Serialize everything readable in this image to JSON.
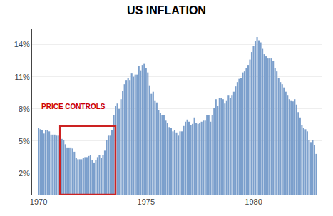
{
  "chart_data": {
    "type": "bar",
    "title": "US INFLATION",
    "color": "#7B9FCC",
    "x": [
      1970.0,
      1970.083,
      1970.167,
      1970.25,
      1970.333,
      1970.417,
      1970.5,
      1970.583,
      1970.667,
      1970.75,
      1970.833,
      1970.917,
      1971.0,
      1971.083,
      1971.167,
      1971.25,
      1971.333,
      1971.417,
      1971.5,
      1971.583,
      1971.667,
      1971.75,
      1971.833,
      1971.917,
      1972.0,
      1972.083,
      1972.167,
      1972.25,
      1972.333,
      1972.417,
      1972.5,
      1972.583,
      1972.667,
      1972.75,
      1972.833,
      1972.917,
      1973.0,
      1973.083,
      1973.167,
      1973.25,
      1973.333,
      1973.417,
      1973.5,
      1973.583,
      1973.667,
      1973.75,
      1973.833,
      1973.917,
      1974.0,
      1974.083,
      1974.167,
      1974.25,
      1974.333,
      1974.417,
      1974.5,
      1974.583,
      1974.667,
      1974.75,
      1974.833,
      1974.917,
      1975.0,
      1975.083,
      1975.167,
      1975.25,
      1975.333,
      1975.417,
      1975.5,
      1975.583,
      1975.667,
      1975.75,
      1975.833,
      1975.917,
      1976.0,
      1976.083,
      1976.167,
      1976.25,
      1976.333,
      1976.417,
      1976.5,
      1976.583,
      1976.667,
      1976.75,
      1976.833,
      1976.917,
      1977.0,
      1977.083,
      1977.167,
      1977.25,
      1977.333,
      1977.417,
      1977.5,
      1977.583,
      1977.667,
      1977.75,
      1977.833,
      1977.917,
      1978.0,
      1978.083,
      1978.167,
      1978.25,
      1978.333,
      1978.417,
      1978.5,
      1978.583,
      1978.667,
      1978.75,
      1978.833,
      1978.917,
      1979.0,
      1979.083,
      1979.167,
      1979.25,
      1979.333,
      1979.417,
      1979.5,
      1979.583,
      1979.667,
      1979.75,
      1979.833,
      1979.917,
      1980.0,
      1980.083,
      1980.167,
      1980.25,
      1980.333,
      1980.417,
      1980.5,
      1980.583,
      1980.667,
      1980.75,
      1980.833,
      1980.917,
      1981.0,
      1981.083,
      1981.167,
      1981.25,
      1981.333,
      1981.417,
      1981.5,
      1981.583,
      1981.667,
      1981.75,
      1981.833,
      1981.917,
      1982.0,
      1982.083,
      1982.167,
      1982.25,
      1982.333,
      1982.417,
      1982.5,
      1982.583,
      1982.667,
      1982.75,
      1982.833,
      1982.917
    ],
    "values": [
      6.2,
      6.1,
      6.0,
      5.7,
      6.0,
      6.0,
      5.9,
      5.6,
      5.6,
      5.6,
      5.5,
      5.5,
      5.3,
      5.2,
      5.1,
      4.7,
      4.4,
      4.4,
      4.4,
      4.3,
      4.0,
      3.4,
      3.3,
      3.3,
      3.3,
      3.4,
      3.5,
      3.5,
      3.6,
      3.7,
      3.2,
      3.0,
      3.2,
      3.5,
      3.7,
      3.4,
      3.7,
      4.1,
      5.1,
      5.5,
      5.5,
      6.0,
      7.4,
      8.3,
      8.5,
      8.0,
      8.9,
      9.7,
      10.3,
      10.7,
      10.9,
      10.7,
      11.3,
      11.0,
      11.2,
      11.2,
      12.0,
      11.6,
      12.1,
      12.2,
      11.8,
      11.4,
      10.2,
      9.4,
      9.6,
      8.8,
      8.6,
      7.9,
      7.6,
      7.4,
      7.4,
      6.9,
      6.7,
      6.3,
      6.2,
      5.9,
      6.0,
      5.8,
      5.5,
      5.9,
      5.9,
      6.4,
      6.8,
      7.0,
      6.8,
      6.5,
      6.6,
      7.2,
      6.7,
      6.6,
      6.7,
      6.8,
      6.9,
      6.9,
      7.4,
      7.4,
      6.8,
      7.4,
      8.1,
      8.9,
      8.3,
      9.0,
      9.0,
      8.9,
      8.5,
      8.8,
      9.3,
      9.0,
      9.3,
      9.6,
      10.1,
      10.5,
      10.8,
      10.9,
      11.4,
      11.5,
      11.8,
      12.1,
      12.6,
      13.3,
      13.9,
      14.3,
      14.7,
      14.4,
      14.2,
      13.6,
      13.1,
      12.9,
      12.7,
      12.7,
      12.7,
      12.5,
      11.8,
      11.5,
      10.9,
      10.5,
      10.3,
      10.0,
      9.6,
      9.3,
      8.9,
      8.8,
      8.7,
      8.9,
      8.4,
      7.7,
      7.2,
      6.5,
      6.2,
      6.1,
      5.9,
      5.1,
      4.9,
      5.1,
      4.6,
      3.8
    ],
    "xlim": [
      1969.7,
      1983.2
    ],
    "xticks": [
      1970,
      1975,
      1980
    ],
    "ylim": [
      0,
      15.5
    ],
    "yticks": [
      {
        "value": 2,
        "label": "2%"
      },
      {
        "value": 5,
        "label": "5%"
      },
      {
        "value": 8,
        "label": "8%"
      },
      {
        "value": 11,
        "label": "11%"
      },
      {
        "value": 14,
        "label": "14%"
      }
    ],
    "grid": "y",
    "highlight": {
      "x0": 1971.0,
      "x1": 1973.58,
      "y0": 0,
      "y1": 6.4,
      "color": "#CC2222"
    },
    "annotations": [
      {
        "text": "PRICE CONTROLS",
        "x": 1970.08,
        "y": 8.2,
        "color": "#CC0000"
      }
    ]
  }
}
